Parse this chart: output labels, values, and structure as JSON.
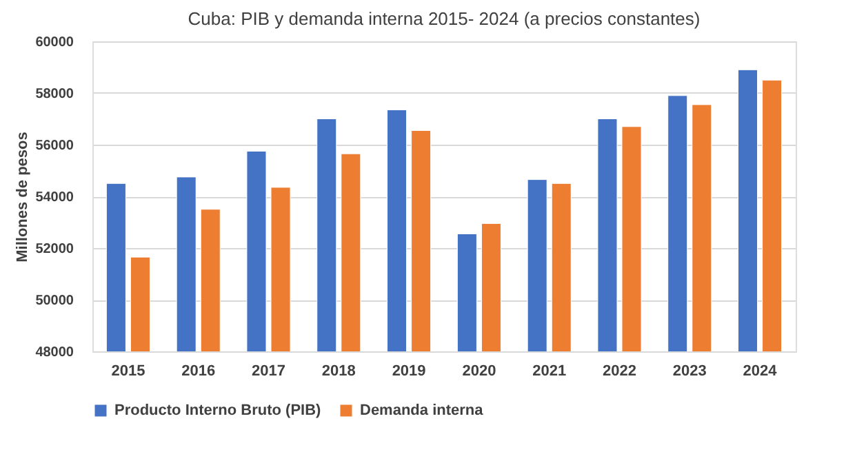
{
  "chart_data": {
    "type": "bar",
    "title": "Cuba: PIB y demanda interna 2015- 2024 (a precios constantes)",
    "ylabel": "Millones de pesos",
    "categories": [
      "2015",
      "2016",
      "2017",
      "2018",
      "2019",
      "2020",
      "2021",
      "2022",
      "2023",
      "2024"
    ],
    "series": [
      {
        "name": "Producto Interno Bruto (PIB)",
        "color": "#4472c4",
        "values": [
          54500,
          54750,
          55750,
          57000,
          57350,
          52550,
          54650,
          57000,
          57900,
          58900
        ]
      },
      {
        "name": "Demanda interna",
        "color": "#ed7d31",
        "values": [
          51650,
          53500,
          54350,
          55650,
          56550,
          52950,
          54500,
          56700,
          57550,
          58500
        ]
      }
    ],
    "ylim": [
      48000,
      60000
    ],
    "yticks": [
      48000,
      50000,
      52000,
      54000,
      56000,
      58000,
      60000
    ],
    "grid": "y",
    "legend": "bottom"
  }
}
